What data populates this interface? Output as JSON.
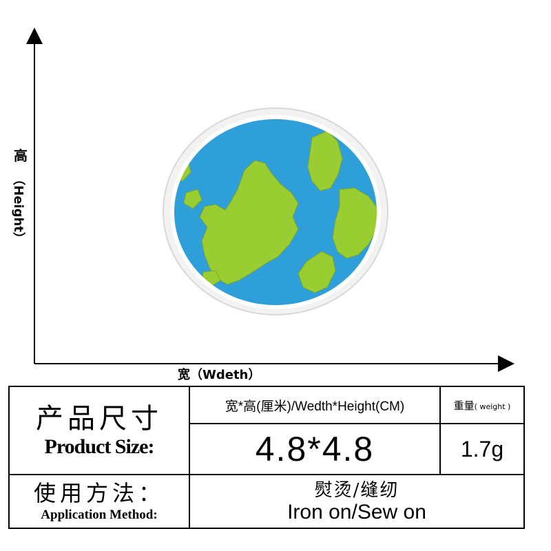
{
  "axes": {
    "height_cn": "高",
    "height_en": "（Height）",
    "width_label": "宽（Wdeth）"
  },
  "patch": {
    "description_icon": "earth-globe-patch",
    "colors": {
      "ocean": "#2E9FD8",
      "land": "#9ACD32",
      "border": "#F2F2F0"
    }
  },
  "spec_table": {
    "product_size_cn": "产品尺寸",
    "product_size_en": "Product Size:",
    "dimension_header": "宽*高(厘米)/Wedth*Height(CM)",
    "weight_header_cn": "重量",
    "weight_header_en": "( weight )",
    "dimension_value": "4.8*4.8",
    "weight_value": "1.7g",
    "application_cn": "使用方法：",
    "application_en": "Application Method:",
    "method_cn": "熨烫/缝纫",
    "method_en": "Iron on/Sew on"
  }
}
